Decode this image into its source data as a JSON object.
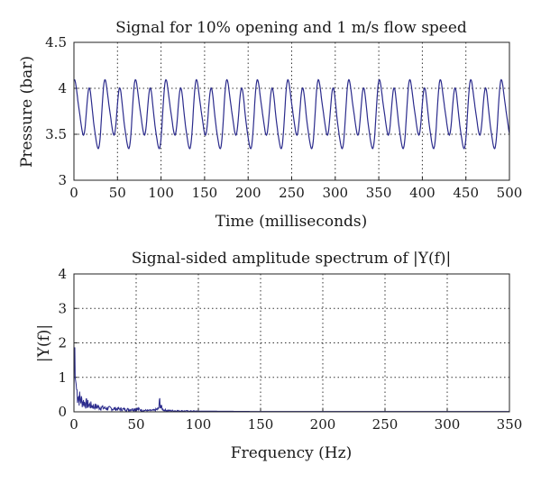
{
  "chart_data": [
    {
      "type": "line",
      "title": "Signal for 10% opening and 1 m/s flow speed",
      "xlabel": "Time (milliseconds)",
      "ylabel": "Pressure (bar)",
      "xlim": [
        0,
        500
      ],
      "ylim": [
        3,
        4.5
      ],
      "x_ticks": [
        "0",
        "50",
        "100",
        "150",
        "200",
        "250",
        "300",
        "350",
        "400",
        "450",
        "500"
      ],
      "y_ticks": [
        "3",
        "3.5",
        "4",
        "4.5"
      ],
      "grid": "dotted, vertical lines at each x tick, horizontal line at 3.5 and 4",
      "line_color": "#2b2b8c",
      "signal_pattern": {
        "description": "quasi-periodic pressure oscillation, alternating high and low peaks",
        "mean": 3.72,
        "period_ms": 17.5,
        "high_peak": 4.14,
        "low_peak": 3.82,
        "trough": 3.32,
        "start_value": 3.82,
        "end_value": 3.62
      },
      "series": [
        {
          "values_sample_x": [
            0,
            5,
            10,
            17,
            25,
            34,
            43,
            52,
            60,
            69,
            77,
            86,
            95,
            104,
            112,
            121,
            130,
            139,
            147,
            156,
            165,
            173,
            182,
            190,
            199,
            208,
            217,
            225,
            234,
            243,
            252,
            260,
            269,
            278,
            286,
            295,
            304,
            312,
            321,
            330,
            339,
            347,
            356,
            365,
            373,
            382,
            391,
            400,
            408,
            417,
            426,
            434,
            443,
            452,
            460,
            469,
            478,
            487,
            495,
            500
          ],
          "values_sample_y": [
            3.82,
            3.35,
            3.6,
            4.14,
            3.33,
            4.08,
            3.33,
            3.8,
            3.34,
            4.15,
            3.33,
            4.07,
            3.32,
            3.82,
            3.33,
            4.15,
            3.33,
            4.09,
            3.32,
            3.8,
            3.33,
            4.14,
            3.32,
            4.08,
            3.33,
            3.82,
            3.32,
            4.15,
            3.33,
            4.08,
            3.32,
            3.8,
            3.33,
            4.14,
            3.32,
            4.08,
            3.33,
            3.82,
            3.32,
            4.15,
            3.33,
            4.07,
            3.32,
            3.8,
            3.33,
            4.14,
            3.32,
            4.09,
            3.33,
            3.82,
            3.32,
            4.15,
            3.33,
            4.08,
            3.32,
            3.8,
            3.33,
            4.14,
            3.4,
            3.62
          ]
        }
      ]
    },
    {
      "type": "line",
      "title": "Signal-sided amplitude spectrum of |Y(f)|",
      "xlabel": "Frequency (Hz)",
      "ylabel": "|Y(f)|",
      "xlim": [
        0,
        350
      ],
      "ylim": [
        0,
        4
      ],
      "x_ticks": [
        "0",
        "50",
        "100",
        "150",
        "200",
        "250",
        "300",
        "350"
      ],
      "y_ticks": [
        "0",
        "1",
        "2",
        "3",
        "4"
      ],
      "grid": "dotted, vertical lines at each x tick, horizontal lines at each y tick",
      "line_color": "#2b2b8c",
      "series": [
        {
          "x": [
            0,
            0.5,
            1,
            2,
            3,
            5,
            8,
            12,
            18,
            25,
            35,
            45,
            50,
            55,
            60,
            65,
            68,
            69,
            70,
            72,
            75,
            85,
            100,
            150,
            200,
            250,
            300,
            350
          ],
          "y": [
            0.3,
            2.45,
            1.0,
            0.75,
            0.55,
            0.4,
            0.3,
            0.22,
            0.16,
            0.12,
            0.09,
            0.07,
            0.1,
            0.05,
            0.04,
            0.05,
            0.1,
            0.35,
            0.15,
            0.06,
            0.04,
            0.03,
            0.02,
            0.01,
            0.01,
            0.01,
            0.01,
            0.01
          ]
        }
      ]
    }
  ]
}
